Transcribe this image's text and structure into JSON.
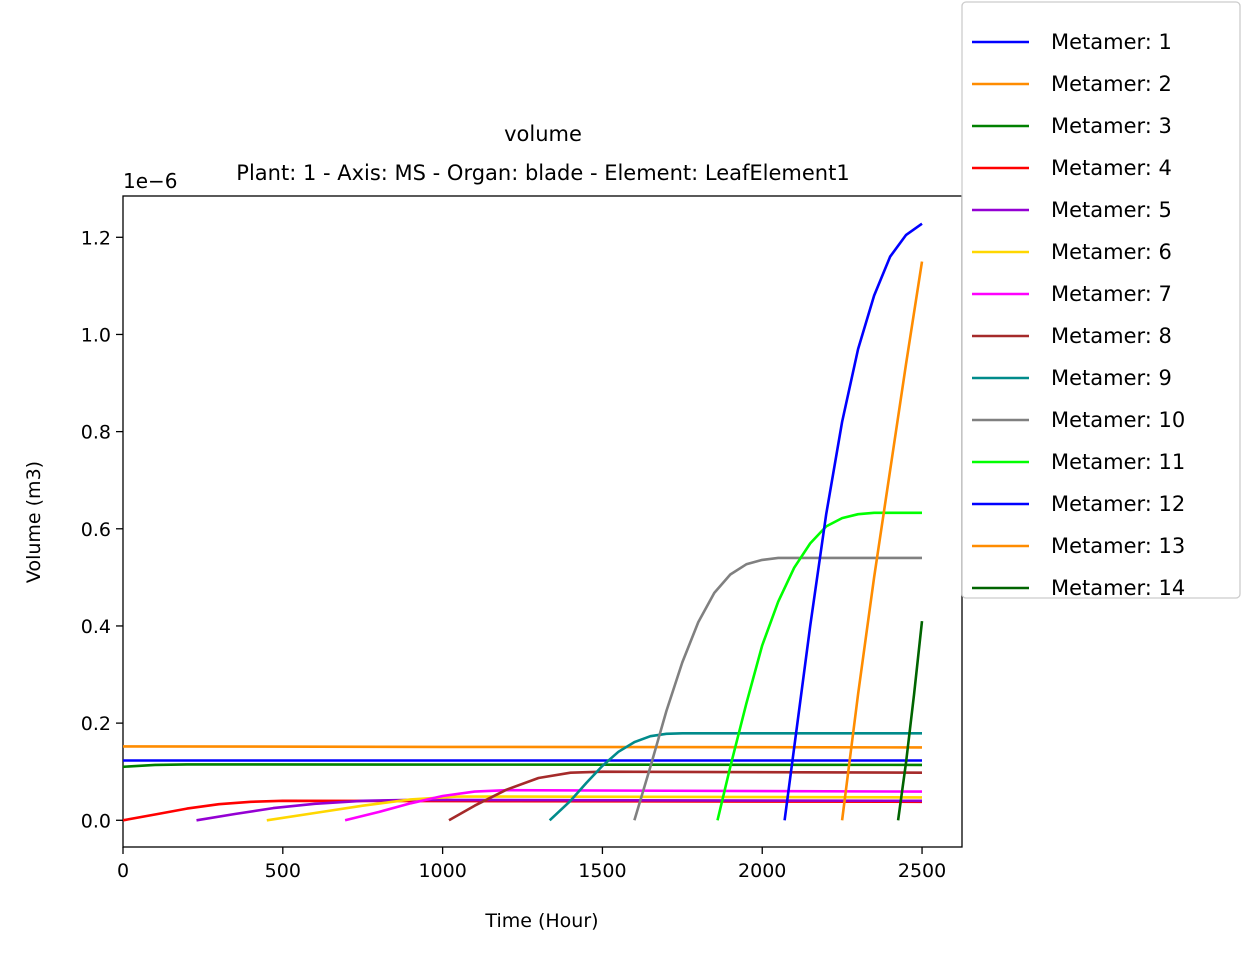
{
  "chart_data": {
    "type": "line",
    "title": "volume",
    "subtitle": "Plant: 1 - Axis: MS - Organ: blade - Element: LeafElement1",
    "xlabel": "Time (Hour)",
    "ylabel": "Volume (m3)",
    "offset_text": "1e−6",
    "xlim": [
      0,
      2625
    ],
    "ylim": [
      -0.055,
      1.285
    ],
    "xticks": [
      0,
      500,
      1000,
      1500,
      2000,
      2500
    ],
    "yticks": [
      0.0,
      0.2,
      0.4,
      0.6,
      0.8,
      1.0,
      1.2
    ],
    "ytick_labels": [
      "0.0",
      "0.2",
      "0.4",
      "0.6",
      "0.8",
      "1.0",
      "1.2"
    ],
    "legend_position": "upper-right-outside",
    "series": [
      {
        "name": "Metamer: 1",
        "color": "#0000ff",
        "x": [
          0,
          2500
        ],
        "y": [
          0.123,
          0.123
        ]
      },
      {
        "name": "Metamer: 2",
        "color": "#ff8c00",
        "x": [
          0,
          1000,
          2500
        ],
        "y": [
          0.152,
          0.151,
          0.15
        ]
      },
      {
        "name": "Metamer: 3",
        "color": "#008000",
        "x": [
          0,
          100,
          200,
          2500
        ],
        "y": [
          0.11,
          0.114,
          0.115,
          0.114
        ]
      },
      {
        "name": "Metamer: 4",
        "color": "#ff0000",
        "x": [
          0,
          100,
          200,
          300,
          400,
          500,
          2500
        ],
        "y": [
          0.0,
          0.012,
          0.024,
          0.033,
          0.038,
          0.04,
          0.038
        ]
      },
      {
        "name": "Metamer: 5",
        "color": "#9400d3",
        "x": [
          230,
          350,
          470,
          600,
          750,
          900,
          2500
        ],
        "y": [
          0.0,
          0.013,
          0.025,
          0.034,
          0.04,
          0.042,
          0.04
        ]
      },
      {
        "name": "Metamer: 6",
        "color": "#ffd700",
        "x": [
          450,
          600,
          750,
          900,
          1050,
          2500
        ],
        "y": [
          0.0,
          0.015,
          0.03,
          0.043,
          0.049,
          0.047
        ]
      },
      {
        "name": "Metamer: 7",
        "color": "#ff00ff",
        "x": [
          695,
          800,
          900,
          1000,
          1100,
          1200,
          2500
        ],
        "y": [
          0.0,
          0.017,
          0.035,
          0.05,
          0.059,
          0.062,
          0.059
        ]
      },
      {
        "name": "Metamer: 8",
        "color": "#a52a2a",
        "x": [
          1020,
          1100,
          1200,
          1300,
          1400,
          1500,
          2500
        ],
        "y": [
          0.0,
          0.03,
          0.063,
          0.087,
          0.098,
          0.1,
          0.098
        ]
      },
      {
        "name": "Metamer: 9",
        "color": "#008b8b",
        "x": [
          1335,
          1400,
          1450,
          1500,
          1550,
          1600,
          1650,
          1700,
          1750,
          2500
        ],
        "y": [
          0.0,
          0.04,
          0.077,
          0.112,
          0.141,
          0.161,
          0.173,
          0.178,
          0.179,
          0.179
        ]
      },
      {
        "name": "Metamer: 10",
        "color": "#808080",
        "x": [
          1600,
          1650,
          1700,
          1750,
          1800,
          1850,
          1900,
          1950,
          2000,
          2050,
          2500
        ],
        "y": [
          0.0,
          0.11,
          0.225,
          0.325,
          0.408,
          0.468,
          0.506,
          0.527,
          0.536,
          0.54,
          0.54
        ]
      },
      {
        "name": "Metamer: 11",
        "color": "#00ff00",
        "x": [
          1860,
          1900,
          1950,
          2000,
          2050,
          2100,
          2150,
          2200,
          2250,
          2300,
          2350,
          2500
        ],
        "y": [
          0.0,
          0.11,
          0.24,
          0.36,
          0.45,
          0.52,
          0.57,
          0.605,
          0.622,
          0.63,
          0.633,
          0.633
        ]
      },
      {
        "name": "Metamer: 12",
        "color": "#0000ff",
        "x": [
          2070,
          2100,
          2150,
          2200,
          2250,
          2300,
          2350,
          2400,
          2450,
          2500
        ],
        "y": [
          0.0,
          0.15,
          0.4,
          0.63,
          0.82,
          0.97,
          1.08,
          1.16,
          1.205,
          1.228
        ]
      },
      {
        "name": "Metamer: 13",
        "color": "#ff8c00",
        "x": [
          2250,
          2300,
          2350,
          2400,
          2450,
          2500
        ],
        "y": [
          0.0,
          0.26,
          0.5,
          0.72,
          0.94,
          1.15
        ]
      },
      {
        "name": "Metamer: 14",
        "color": "#006400",
        "x": [
          2425,
          2450,
          2475,
          2500
        ],
        "y": [
          0.0,
          0.12,
          0.26,
          0.41
        ]
      }
    ]
  }
}
